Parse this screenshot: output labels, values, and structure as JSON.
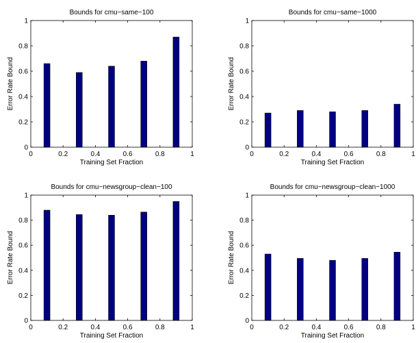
{
  "chart_data": [
    {
      "type": "bar",
      "title": "Bounds for cmu−same−100",
      "xlabel": "Training Set Fraction",
      "ylabel": "Error Rate Bound",
      "x": [
        0.1,
        0.3,
        0.5,
        0.7,
        0.9
      ],
      "values": [
        0.66,
        0.59,
        0.64,
        0.68,
        0.87
      ],
      "color": "#000080",
      "xlim": [
        0,
        1
      ],
      "xticks": [
        0,
        0.2,
        0.4,
        0.6,
        0.8,
        1
      ],
      "ylim": [
        0,
        1
      ],
      "yticks": [
        0,
        0.2,
        0.4,
        0.6,
        0.8,
        1
      ]
    },
    {
      "type": "bar",
      "title": "Bounds for cmu−same−1000",
      "xlabel": "Training Set Fraction",
      "ylabel": "Error Rate Bound",
      "x": [
        0.1,
        0.3,
        0.5,
        0.7,
        0.9
      ],
      "values": [
        0.27,
        0.29,
        0.28,
        0.29,
        0.34
      ],
      "color": "#000080",
      "xlim": [
        0,
        1
      ],
      "xticks": [
        0,
        0.2,
        0.4,
        0.6,
        0.8,
        1
      ],
      "ylim": [
        0,
        1
      ],
      "yticks": [
        0,
        0.2,
        0.4,
        0.6,
        0.8,
        1
      ]
    },
    {
      "type": "bar",
      "title": "Bounds for cmu−newsgroup−clean−100",
      "xlabel": "Training Set Fraction",
      "ylabel": "Error Rate Bound",
      "x": [
        0.1,
        0.3,
        0.5,
        0.7,
        0.9
      ],
      "values": [
        0.88,
        0.845,
        0.84,
        0.865,
        0.95
      ],
      "color": "#000080",
      "xlim": [
        0,
        1
      ],
      "xticks": [
        0,
        0.2,
        0.4,
        0.6,
        0.8,
        1
      ],
      "ylim": [
        0,
        1
      ],
      "yticks": [
        0,
        0.2,
        0.4,
        0.6,
        0.8,
        1
      ]
    },
    {
      "type": "bar",
      "title": "Bounds for cmu−newsgroup−clean−1000",
      "xlabel": "Training Set Fraction",
      "ylabel": "Error Rate Bound",
      "x": [
        0.1,
        0.3,
        0.5,
        0.7,
        0.9
      ],
      "values": [
        0.53,
        0.495,
        0.48,
        0.495,
        0.545
      ],
      "color": "#000080",
      "xlim": [
        0,
        1
      ],
      "xticks": [
        0,
        0.2,
        0.4,
        0.6,
        0.8,
        1
      ],
      "ylim": [
        0,
        1
      ],
      "yticks": [
        0,
        0.2,
        0.4,
        0.6,
        0.8,
        1
      ]
    }
  ]
}
